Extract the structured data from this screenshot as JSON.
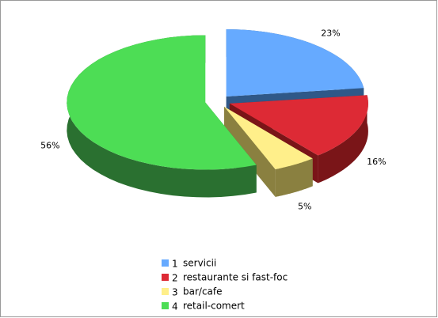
{
  "chart_data": {
    "type": "pie3d",
    "series": [
      {
        "name": "servicii",
        "legend_id": 1,
        "color": "#66aaff",
        "side_color": "#2f5888",
        "values": [
          23
        ],
        "value_labels": [
          "23%"
        ]
      },
      {
        "name": "restaurante si fast-foc",
        "legend_id": 2,
        "color": "#dd2a35",
        "side_color": "#7a1518",
        "values": [
          16
        ],
        "value_labels": [
          "16%"
        ]
      },
      {
        "name": "bar/cafe",
        "legend_id": 3,
        "color": "#ffef8a",
        "side_color": "#8a8040",
        "values": [
          5
        ],
        "value_labels": [
          "5%"
        ]
      },
      {
        "name": "retail-comert",
        "legend_id": 4,
        "color": "#4ddd55",
        "side_color": "#2a7030",
        "values": [
          56
        ],
        "value_labels": [
          "56%"
        ]
      }
    ]
  }
}
